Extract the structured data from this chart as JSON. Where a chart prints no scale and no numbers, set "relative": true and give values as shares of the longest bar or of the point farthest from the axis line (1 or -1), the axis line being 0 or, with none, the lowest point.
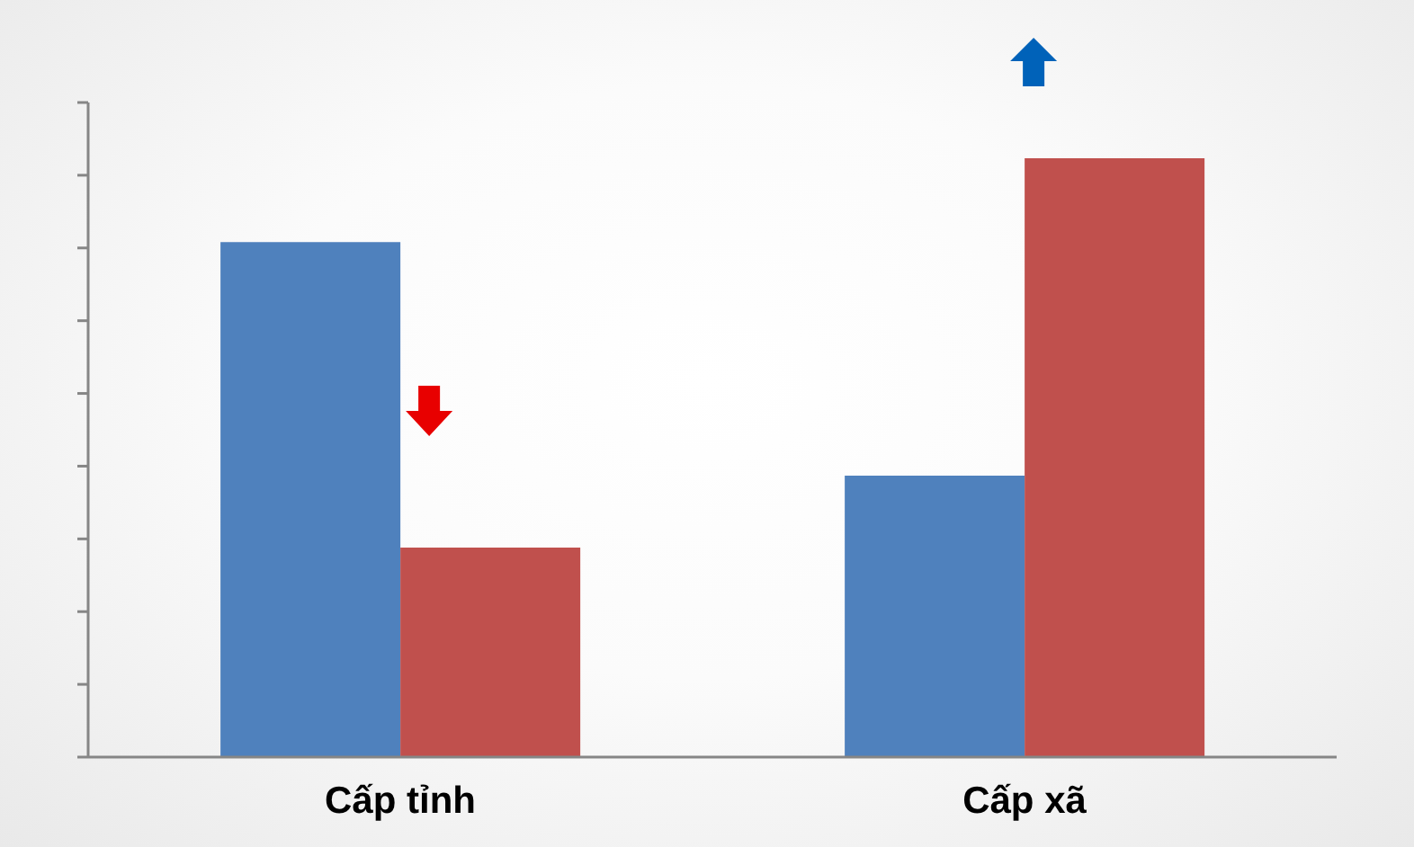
{
  "chart_data": {
    "type": "bar",
    "categories": [
      "Cấp tỉnh",
      "Cấp xã"
    ],
    "relative": true,
    "series": [
      {
        "color": "#4f81bd",
        "values": [
          0.86,
          0.47
        ]
      },
      {
        "color": "#c0504d",
        "values": [
          0.35,
          1
        ]
      }
    ]
  }
}
